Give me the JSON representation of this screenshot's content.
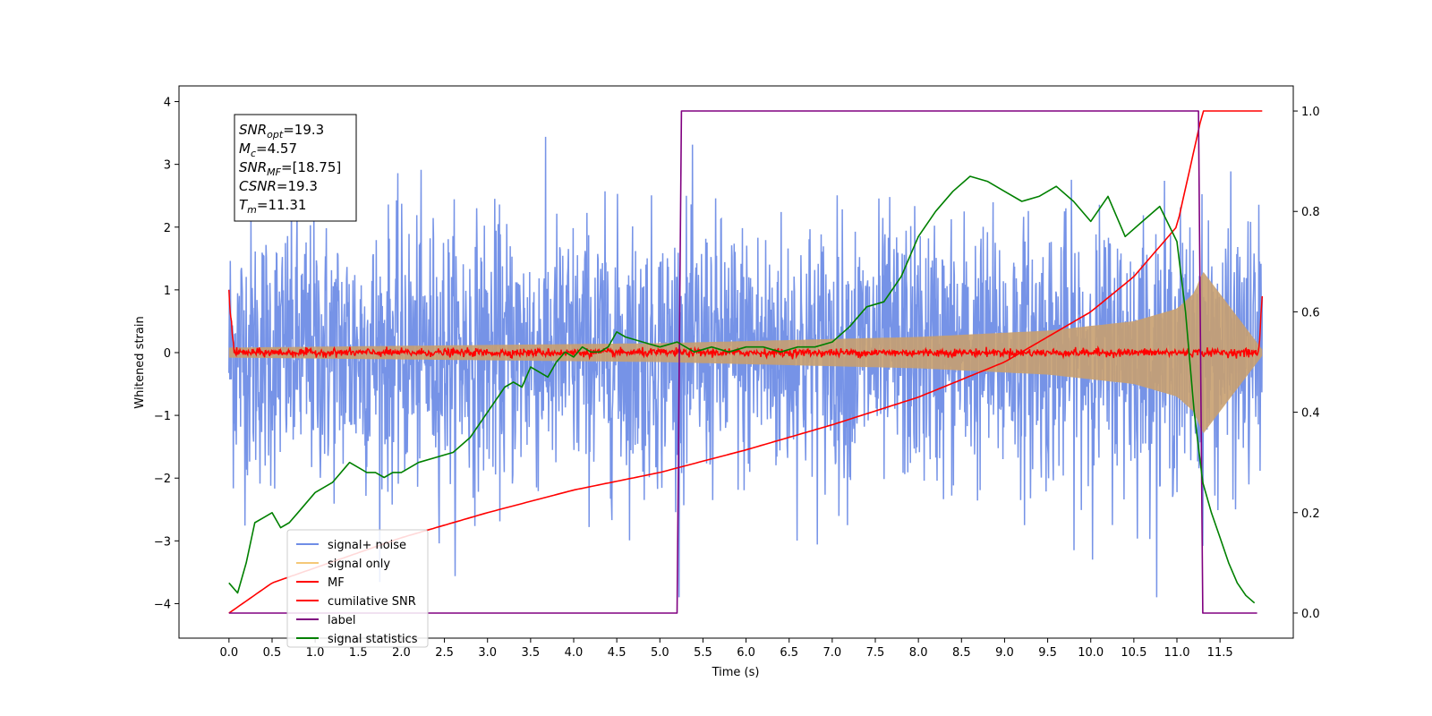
{
  "chart_data": {
    "type": "line",
    "xlabel": "Time (s)",
    "ylabel": "Whitened strain",
    "xlim": [
      -0.58,
      12.35
    ],
    "ylim": [
      -4.55,
      4.25
    ],
    "ylim_right": [
      -0.05,
      1.05
    ],
    "x_ticks": [
      "0.0",
      "0.5",
      "1.0",
      "1.5",
      "2.0",
      "2.5",
      "3.0",
      "3.5",
      "4.0",
      "4.5",
      "5.0",
      "5.5",
      "6.0",
      "6.5",
      "7.0",
      "7.5",
      "8.0",
      "8.5",
      "9.0",
      "9.5",
      "10.0",
      "10.5",
      "11.0",
      "11.5"
    ],
    "y_ticks_left": [
      "4",
      "3",
      "2",
      "1",
      "0",
      "−1",
      "−2",
      "−3",
      "−4"
    ],
    "y_ticks_right": [
      "1.0",
      "0.8",
      "0.6",
      "0.4",
      "0.2",
      "0.0"
    ],
    "legend_position": "lower-left",
    "annotation": [
      {
        "var": "SNR",
        "sub": "opt",
        "value": "=19.3"
      },
      {
        "var": "M",
        "sub": "c",
        "value": "=4.57"
      },
      {
        "var": "SNR",
        "sub": "MF",
        "value": "=[18.75]"
      },
      {
        "var": "CSNR",
        "sub": "",
        "value": "=19.3"
      },
      {
        "var": "T",
        "sub": "m",
        "value": "=11.31"
      }
    ],
    "series": [
      {
        "name": "signal+ noise",
        "color": "#6f8de6",
        "axis": "left",
        "kind": "noise",
        "x_range": [
          0.0,
          11.99
        ],
        "amplitude_sigma": 1.05,
        "peak_extremes": [
          3.85,
          -3.9
        ]
      },
      {
        "name": "signal only",
        "color": "#f5c878",
        "axis": "left",
        "kind": "chirp_envelope",
        "x_range": [
          0.0,
          11.99
        ],
        "envelope": {
          "x": [
            0.0,
            5.0,
            8.0,
            9.5,
            10.5,
            11.0,
            11.2,
            11.3,
            11.99
          ],
          "y": [
            0.08,
            0.15,
            0.25,
            0.35,
            0.5,
            0.7,
            0.95,
            1.3,
            0.05
          ]
        }
      },
      {
        "name": "MF",
        "color": "#ff0000",
        "axis": "left",
        "kind": "mf_noise",
        "x_range": [
          0.0,
          11.99
        ],
        "amplitude": 0.07,
        "start_value": 1.0,
        "end_value": 0.9
      },
      {
        "name": "cumilative SNR",
        "color": "#ff0000",
        "axis": "right",
        "x": [
          0.0,
          0.5,
          1.0,
          1.5,
          2.0,
          3.0,
          4.0,
          5.0,
          6.0,
          7.0,
          8.0,
          9.0,
          10.0,
          10.5,
          11.0,
          11.3,
          11.99
        ],
        "y": [
          0.0,
          0.06,
          0.09,
          0.12,
          0.15,
          0.2,
          0.245,
          0.28,
          0.325,
          0.375,
          0.43,
          0.5,
          0.6,
          0.67,
          0.77,
          1.0,
          1.0
        ]
      },
      {
        "name": "label",
        "color": "#800080",
        "axis": "right",
        "x": [
          0.0,
          5.2,
          5.25,
          11.25,
          11.3,
          11.93
        ],
        "y": [
          0.0,
          0.0,
          1.0,
          1.0,
          0.0,
          0.0
        ]
      },
      {
        "name": "signal statistics",
        "color": "#008000",
        "axis": "right",
        "x": [
          0.0,
          0.1,
          0.2,
          0.3,
          0.4,
          0.5,
          0.6,
          0.7,
          0.8,
          1.0,
          1.2,
          1.4,
          1.5,
          1.6,
          1.7,
          1.8,
          1.9,
          2.0,
          2.2,
          2.4,
          2.6,
          2.8,
          3.0,
          3.2,
          3.3,
          3.4,
          3.5,
          3.6,
          3.7,
          3.8,
          3.9,
          4.0,
          4.1,
          4.2,
          4.3,
          4.4,
          4.5,
          4.6,
          4.8,
          5.0,
          5.2,
          5.4,
          5.6,
          5.8,
          6.0,
          6.2,
          6.4,
          6.6,
          6.8,
          7.0,
          7.2,
          7.4,
          7.6,
          7.8,
          8.0,
          8.2,
          8.4,
          8.6,
          8.8,
          9.0,
          9.2,
          9.4,
          9.6,
          9.8,
          10.0,
          10.2,
          10.4,
          10.6,
          10.8,
          11.0,
          11.1,
          11.2,
          11.3,
          11.4,
          11.5,
          11.6,
          11.7,
          11.8,
          11.9
        ],
        "y": [
          0.06,
          0.04,
          0.1,
          0.18,
          0.19,
          0.2,
          0.17,
          0.18,
          0.2,
          0.24,
          0.26,
          0.3,
          0.29,
          0.28,
          0.28,
          0.27,
          0.28,
          0.28,
          0.3,
          0.31,
          0.32,
          0.35,
          0.4,
          0.45,
          0.46,
          0.45,
          0.49,
          0.48,
          0.47,
          0.5,
          0.52,
          0.51,
          0.53,
          0.52,
          0.52,
          0.53,
          0.56,
          0.55,
          0.54,
          0.53,
          0.54,
          0.52,
          0.53,
          0.52,
          0.53,
          0.53,
          0.52,
          0.53,
          0.53,
          0.54,
          0.57,
          0.61,
          0.62,
          0.67,
          0.75,
          0.8,
          0.84,
          0.87,
          0.86,
          0.84,
          0.82,
          0.83,
          0.85,
          0.82,
          0.78,
          0.83,
          0.75,
          0.78,
          0.81,
          0.74,
          0.6,
          0.4,
          0.26,
          0.2,
          0.15,
          0.1,
          0.06,
          0.035,
          0.02
        ]
      }
    ]
  }
}
